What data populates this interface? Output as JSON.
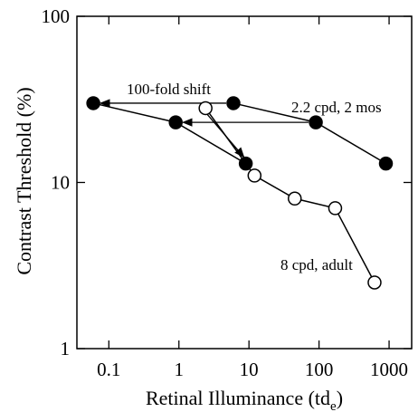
{
  "chart_data": {
    "type": "line",
    "x_label": [
      "Retinal Illuminance (td",
      "e",
      ")"
    ],
    "y_label": "Contrast Threshold (%)",
    "xlog": true,
    "ylog": true,
    "xlim": [
      0.035,
      2100
    ],
    "ylim": [
      1,
      100
    ],
    "xticks": [
      0.1,
      1,
      10,
      100,
      1000
    ],
    "yticks": [
      1,
      10,
      100
    ],
    "series": [
      {
        "name": "2.2 cpd, 2 mos",
        "color": "#000000",
        "marker": "filled",
        "x": [
          6,
          90,
          900
        ],
        "values": [
          30,
          23,
          13
        ]
      },
      {
        "color": "#000000",
        "marker": "filled",
        "x": [
          0.06,
          0.9,
          9
        ],
        "values": [
          30,
          23,
          13
        ]
      },
      {
        "name": "8 cpd, adult",
        "color": "#000000",
        "marker": "open",
        "x": [
          2.4,
          12,
          45,
          170,
          620
        ],
        "values": [
          28,
          11,
          8,
          7,
          2.5
        ]
      }
    ],
    "annotations": [
      "100-fold shift"
    ]
  }
}
